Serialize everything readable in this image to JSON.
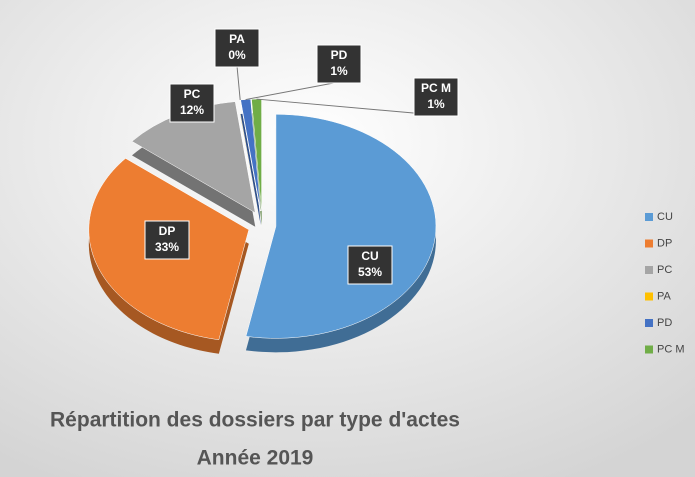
{
  "chart_data": {
    "type": "pie",
    "title": "Répartition des dossiers par type d'actes",
    "subtitle": "Année 2019",
    "categories": [
      "CU",
      "DP",
      "PC",
      "PA",
      "PD",
      "PC M"
    ],
    "values": [
      53,
      33,
      12,
      0,
      1,
      1
    ],
    "value_labels": [
      "53%",
      "33%",
      "12%",
      "0%",
      "1%",
      "1%"
    ],
    "colors": [
      "#5b9bd5",
      "#ed7d31",
      "#a5a5a5",
      "#ffc000",
      "#4472c4",
      "#70ad47"
    ],
    "legend": "right"
  }
}
